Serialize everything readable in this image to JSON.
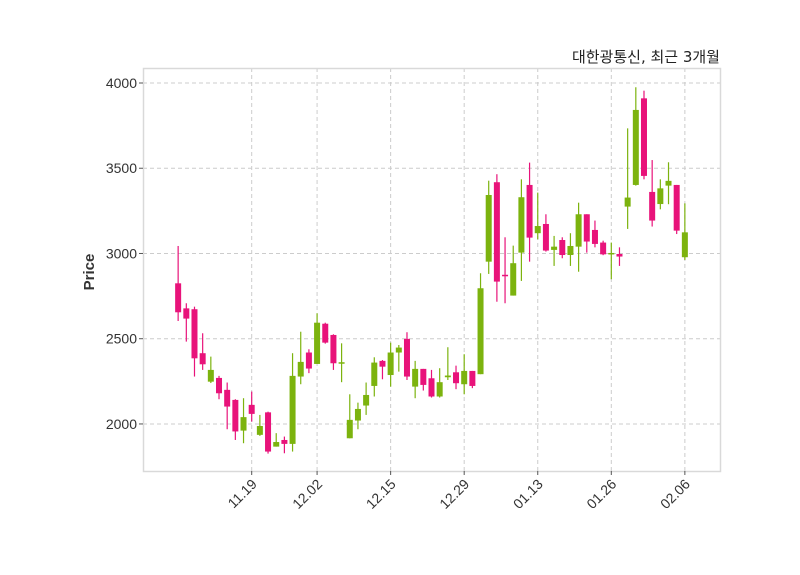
{
  "chart_data": {
    "type": "candlestick",
    "title": "대한광통신, 최근 3개월",
    "xlabel": "",
    "ylabel": "Price",
    "ylim": [
      1724,
      4088
    ],
    "xlim": [
      -4.3,
      66.3
    ],
    "grid": true,
    "yticks": [
      2000,
      2500,
      3000,
      3500,
      4000
    ],
    "xticks": [
      {
        "index": 9,
        "label": "11.19"
      },
      {
        "index": 17,
        "label": "12.02"
      },
      {
        "index": 26,
        "label": "12.15"
      },
      {
        "index": 35,
        "label": "12.29"
      },
      {
        "index": 44,
        "label": "01.13"
      },
      {
        "index": 53,
        "label": "01.26"
      },
      {
        "index": 62,
        "label": "02.06"
      }
    ],
    "colors": {
      "up": "#7cb30e",
      "down": "#e8137a",
      "grid": "#cccccc",
      "frame": "#d9d9d9"
    },
    "fields": [
      "open",
      "high",
      "low",
      "close"
    ],
    "candles": [
      [
        2825,
        3044,
        2604,
        2655
      ],
      [
        2678,
        2708,
        2483,
        2618
      ],
      [
        2673,
        2688,
        2278,
        2385
      ],
      [
        2415,
        2532,
        2317,
        2350
      ],
      [
        2248,
        2395,
        2240,
        2317
      ],
      [
        2270,
        2282,
        2145,
        2180
      ],
      [
        2200,
        2243,
        1969,
        2102
      ],
      [
        2141,
        2145,
        1906,
        1956
      ],
      [
        1961,
        2151,
        1887,
        2040
      ],
      [
        2112,
        2190,
        2014,
        2059
      ],
      [
        1936,
        2053,
        1930,
        1988
      ],
      [
        2068,
        2072,
        1826,
        1838
      ],
      [
        1867,
        1946,
        1867,
        1894
      ],
      [
        1906,
        1926,
        1828,
        1883
      ],
      [
        1883,
        2415,
        1838,
        2282
      ],
      [
        2278,
        2541,
        2233,
        2364
      ],
      [
        2419,
        2438,
        2298,
        2325
      ],
      [
        2352,
        2649,
        2352,
        2594
      ],
      [
        2588,
        2594,
        2471,
        2477
      ],
      [
        2522,
        2526,
        2317,
        2356
      ],
      [
        2356,
        2473,
        2245,
        2362
      ],
      [
        1916,
        2174,
        1916,
        2024
      ],
      [
        2020,
        2125,
        1969,
        2088
      ],
      [
        2108,
        2243,
        2053,
        2170
      ],
      [
        2223,
        2391,
        2161,
        2360
      ],
      [
        2370,
        2375,
        2262,
        2336
      ],
      [
        2287,
        2477,
        2219,
        2419
      ],
      [
        2419,
        2463,
        2307,
        2448
      ],
      [
        2499,
        2538,
        2258,
        2278
      ],
      [
        2219,
        2370,
        2151,
        2323
      ],
      [
        2323,
        2323,
        2196,
        2229
      ],
      [
        2268,
        2317,
        2155,
        2161
      ],
      [
        2161,
        2327,
        2155,
        2245
      ],
      [
        2274,
        2450,
        2258,
        2284
      ],
      [
        2303,
        2342,
        2204,
        2239
      ],
      [
        2233,
        2409,
        2174,
        2311
      ],
      [
        2311,
        2311,
        2210,
        2223
      ],
      [
        2292,
        2884,
        2292,
        2796
      ],
      [
        2952,
        3427,
        2880,
        3343
      ],
      [
        3418,
        3465,
        2717,
        2835
      ],
      [
        2875,
        3095,
        2708,
        2870
      ],
      [
        2753,
        3046,
        2753,
        2943
      ],
      [
        3005,
        3435,
        2839,
        3330
      ],
      [
        3402,
        3533,
        2952,
        3093
      ],
      [
        3119,
        3357,
        3083,
        3161
      ],
      [
        3173,
        3230,
        3011,
        3017
      ],
      [
        3021,
        3103,
        2927,
        3040
      ],
      [
        3079,
        3095,
        2972,
        2991
      ],
      [
        2991,
        3119,
        2927,
        3044
      ],
      [
        3040,
        3298,
        2893,
        3230
      ],
      [
        3230,
        3230,
        3005,
        3070
      ],
      [
        3138,
        3193,
        3036,
        3056
      ],
      [
        3064,
        3075,
        2990,
        2995
      ],
      [
        2997,
        3064,
        2849,
        3003
      ],
      [
        2997,
        3036,
        2927,
        2982
      ],
      [
        3275,
        3734,
        3144,
        3328
      ],
      [
        3402,
        3975,
        3398,
        3842
      ],
      [
        3910,
        3955,
        3435,
        3455
      ],
      [
        3361,
        3548,
        3158,
        3193
      ],
      [
        3290,
        3435,
        3259,
        3382
      ],
      [
        3398,
        3535,
        3289,
        3426
      ],
      [
        3402,
        3402,
        3114,
        3134
      ],
      [
        2978,
        3294,
        2962,
        3124
      ]
    ]
  }
}
